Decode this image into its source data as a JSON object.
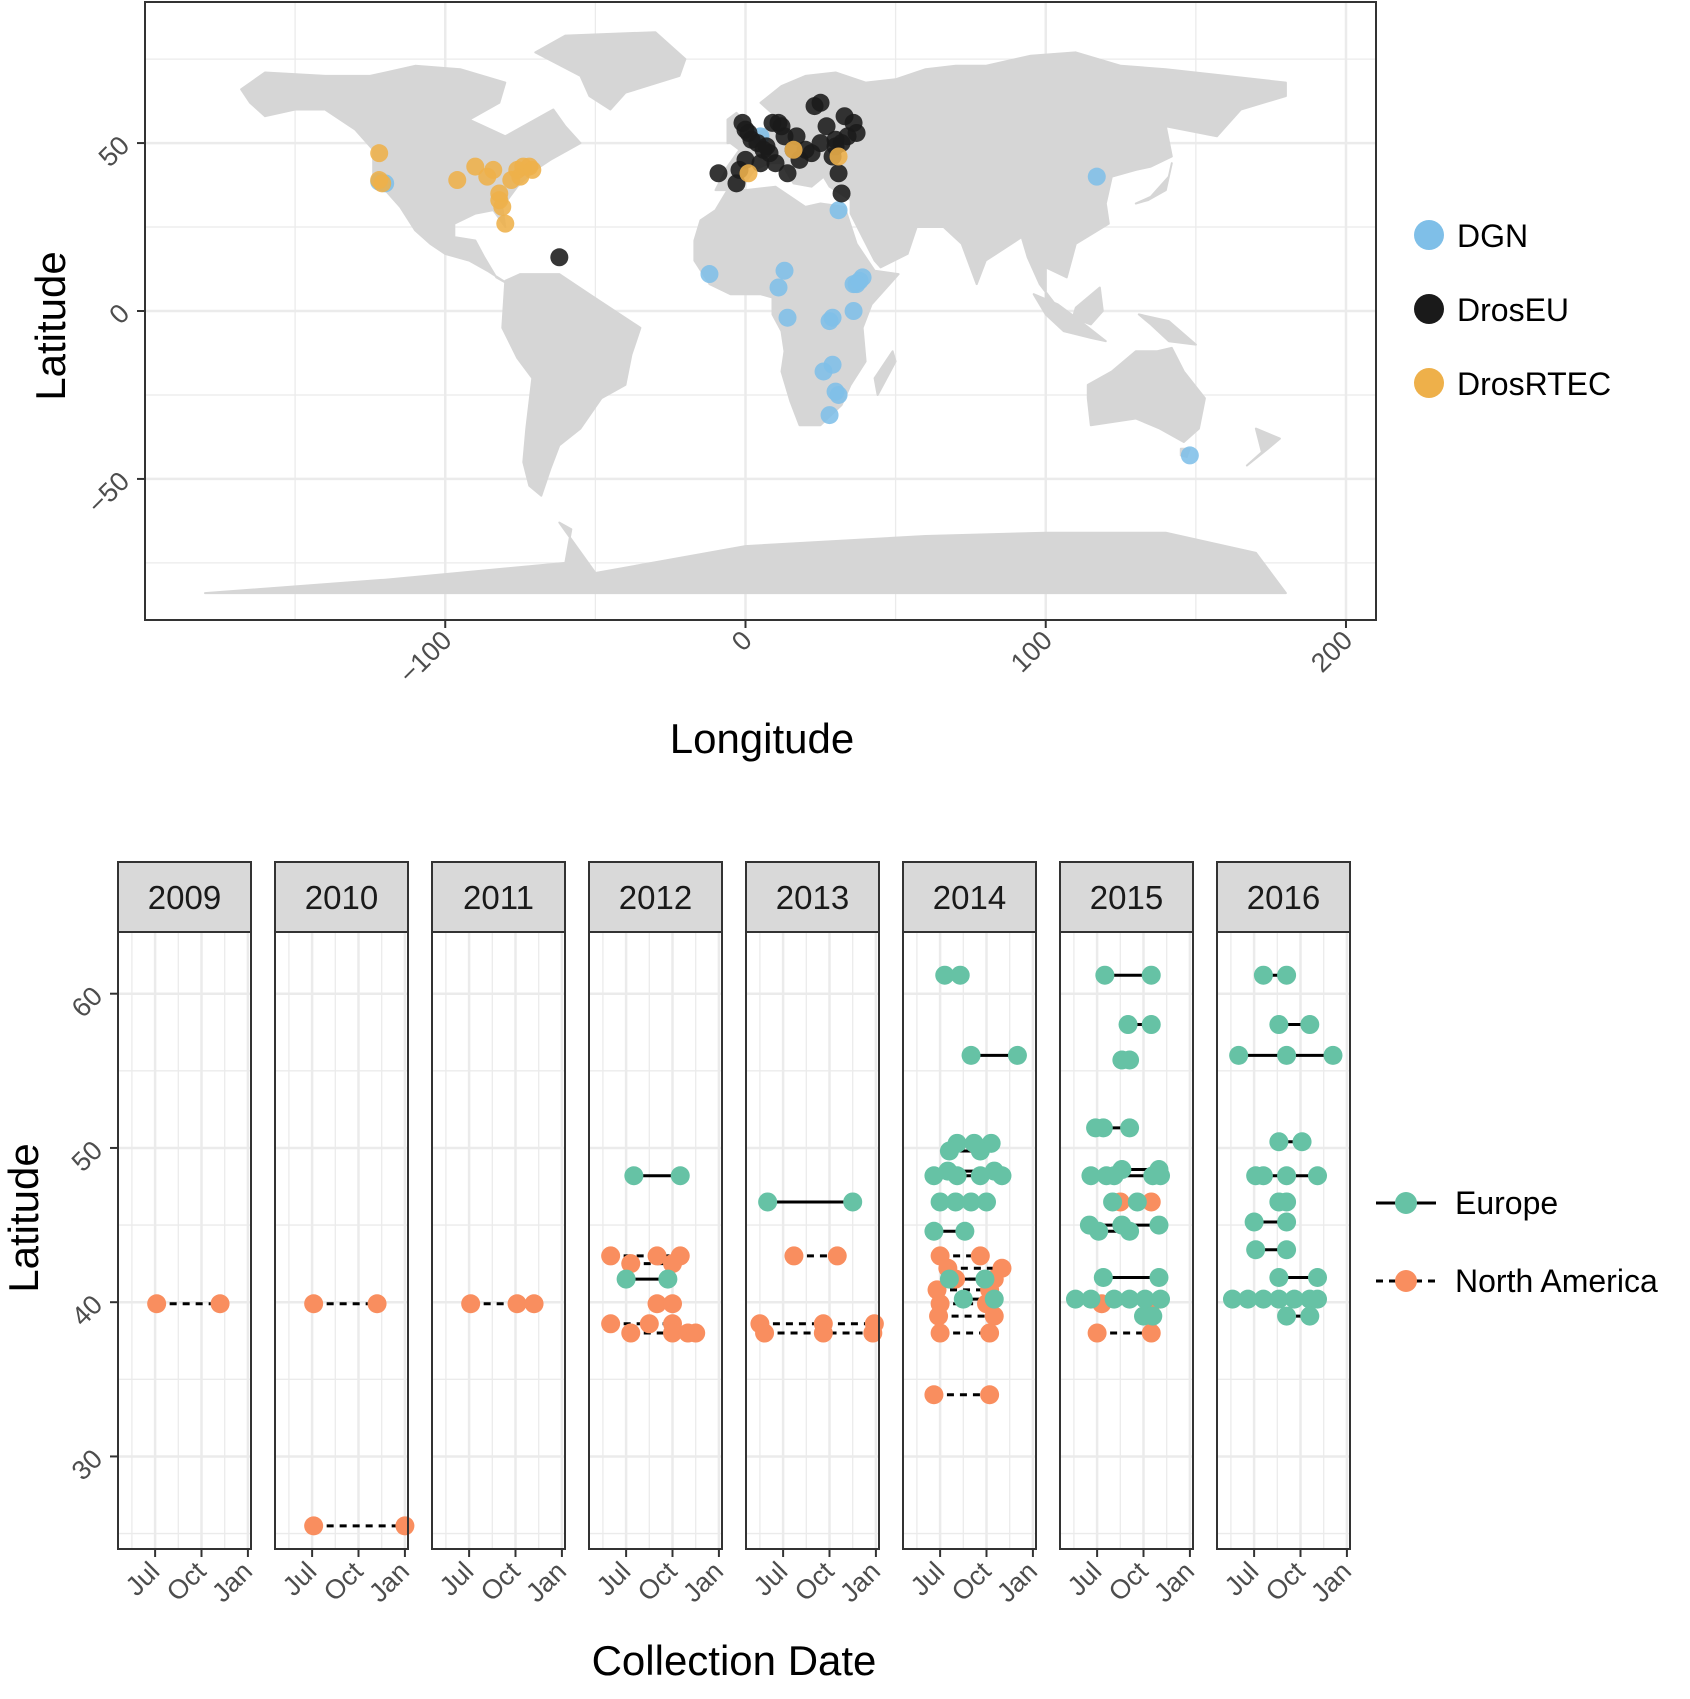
{
  "chart_data": [
    {
      "type": "scatter",
      "xlabel": "Longitude",
      "ylabel": "Latitude",
      "xlim": [
        -200,
        210
      ],
      "ylim": [
        -92,
        92
      ],
      "x_ticks": [
        -100,
        0,
        100,
        200
      ],
      "y_ticks": [
        -50,
        0,
        50
      ],
      "grid": true,
      "legend_position": "right",
      "background_map": "world",
      "legend": [
        {
          "name": "DGN",
          "color": "#7fbfe8"
        },
        {
          "name": "DrosEU",
          "color": "#1a1a1a"
        },
        {
          "name": "DrosRTEC",
          "color": "#eeb04a"
        }
      ],
      "series": [
        {
          "name": "DGN",
          "color": "#7fbfe8",
          "points": [
            [
              -122,
              38.5
            ],
            [
              -120,
              38
            ],
            [
              5,
              52
            ],
            [
              31,
              30
            ],
            [
              117,
              40
            ],
            [
              -12,
              11
            ],
            [
              13,
              12
            ],
            [
              11,
              7
            ],
            [
              14,
              -2
            ],
            [
              28,
              -3
            ],
            [
              29,
              -2
            ],
            [
              36,
              8
            ],
            [
              38,
              9
            ],
            [
              39,
              10
            ],
            [
              37,
              8
            ],
            [
              36,
              0
            ],
            [
              26,
              -18
            ],
            [
              29,
              -16
            ],
            [
              31,
              -25
            ],
            [
              30,
              -24
            ],
            [
              28,
              -31
            ],
            [
              148,
              -43
            ]
          ]
        },
        {
          "name": "DrosEU",
          "color": "#1a1a1a",
          "points": [
            [
              -1,
              56
            ],
            [
              0,
              54
            ],
            [
              1,
              53
            ],
            [
              2,
              51
            ],
            [
              4,
              50
            ],
            [
              7,
              49
            ],
            [
              8,
              47
            ],
            [
              6,
              48
            ],
            [
              9,
              56
            ],
            [
              11,
              56
            ],
            [
              12,
              55
            ],
            [
              13,
              52
            ],
            [
              16,
              48
            ],
            [
              17,
              52
            ],
            [
              20,
              48
            ],
            [
              22,
              47
            ],
            [
              23,
              61
            ],
            [
              25,
              62
            ],
            [
              25,
              50
            ],
            [
              27,
              55
            ],
            [
              29,
              46
            ],
            [
              30,
              51
            ],
            [
              30,
              49
            ],
            [
              32,
              50
            ],
            [
              33,
              58
            ],
            [
              34,
              52
            ],
            [
              36,
              56
            ],
            [
              37,
              53
            ],
            [
              31,
              41
            ],
            [
              32,
              35
            ],
            [
              -9,
              41
            ],
            [
              -3,
              38
            ],
            [
              -2,
              42
            ],
            [
              0,
              45
            ],
            [
              5,
              44
            ],
            [
              10,
              44
            ],
            [
              14,
              41
            ],
            [
              18,
              45
            ],
            [
              -62,
              16
            ]
          ]
        },
        {
          "name": "DrosRTEC",
          "color": "#eeb04a",
          "points": [
            [
              -122,
              47
            ],
            [
              -121,
              38
            ],
            [
              -122,
              39
            ],
            [
              -96,
              39
            ],
            [
              -90,
              43
            ],
            [
              -86,
              40
            ],
            [
              -84,
              42
            ],
            [
              -82,
              35
            ],
            [
              -81,
              31
            ],
            [
              -80,
              26
            ],
            [
              -78,
              39
            ],
            [
              -76,
              42
            ],
            [
              -75,
              40
            ],
            [
              -74,
              43
            ],
            [
              -72,
              43
            ],
            [
              -71,
              42
            ],
            [
              -82,
              33
            ],
            [
              1,
              41
            ],
            [
              16,
              48
            ],
            [
              31,
              46
            ]
          ]
        }
      ]
    },
    {
      "type": "line",
      "title": "",
      "xlabel": "Collection Date",
      "ylabel": "Latitude",
      "facets": [
        "2009",
        "2010",
        "2011",
        "2012",
        "2013",
        "2014",
        "2015",
        "2016"
      ],
      "x_ticks": [
        "Jul",
        "Oct",
        "Jan"
      ],
      "y_ticks": [
        30,
        40,
        50,
        60
      ],
      "ylim": [
        24,
        64
      ],
      "xlim_months": [
        4.6,
        13.2
      ],
      "grid": true,
      "legend_position": "right",
      "legend": [
        {
          "name": "Europe",
          "color": "#66c2a5",
          "line": "solid"
        },
        {
          "name": "North America",
          "color": "#f98e5f",
          "line": "dashed"
        }
      ],
      "series": [
        {
          "name": "North America",
          "color": "#f98e5f",
          "line": "dashed",
          "pairs": [
            {
              "year": "2009",
              "lat": 39.9,
              "dates": [
                7.1,
                11.2
              ]
            },
            {
              "year": "2010",
              "lat": 39.9,
              "dates": [
                7.1,
                11.2
              ]
            },
            {
              "year": "2010",
              "lat": 25.5,
              "dates": [
                7.1,
                13.0
              ]
            },
            {
              "year": "2011",
              "lat": 39.9,
              "dates": [
                7.1,
                10.1,
                11.2
              ]
            },
            {
              "year": "2012",
              "lat": 43.0,
              "dates": [
                6.0,
                9.0,
                10.5
              ]
            },
            {
              "year": "2012",
              "lat": 42.5,
              "dates": [
                7.3,
                10.0
              ]
            },
            {
              "year": "2012",
              "lat": 39.9,
              "dates": [
                9.0,
                10.0
              ]
            },
            {
              "year": "2012",
              "lat": 38.6,
              "dates": [
                6.0,
                8.5,
                10.0
              ]
            },
            {
              "year": "2012",
              "lat": 38.0,
              "dates": [
                7.3,
                10.0,
                11.0,
                11.5
              ]
            },
            {
              "year": "2013",
              "lat": 43.0,
              "dates": [
                7.7,
                10.5
              ]
            },
            {
              "year": "2013",
              "lat": 38.6,
              "dates": [
                5.5,
                9.6,
                12.9
              ]
            },
            {
              "year": "2013",
              "lat": 38.0,
              "dates": [
                5.8,
                9.6,
                12.8
              ]
            },
            {
              "year": "2014",
              "lat": 43.0,
              "dates": [
                7.0,
                9.6
              ]
            },
            {
              "year": "2014",
              "lat": 42.2,
              "dates": [
                7.5,
                11.0
              ]
            },
            {
              "year": "2014",
              "lat": 41.5,
              "dates": [
                8.0,
                10.5
              ]
            },
            {
              "year": "2014",
              "lat": 40.8,
              "dates": [
                6.8,
                10.2
              ]
            },
            {
              "year": "2014",
              "lat": 39.9,
              "dates": [
                7.0,
                10.0
              ]
            },
            {
              "year": "2014",
              "lat": 39.1,
              "dates": [
                6.9,
                10.5
              ]
            },
            {
              "year": "2014",
              "lat": 38.0,
              "dates": [
                7.0,
                10.2
              ]
            },
            {
              "year": "2014",
              "lat": 34.0,
              "dates": [
                6.6,
                10.2
              ]
            },
            {
              "year": "2015",
              "lat": 46.5,
              "dates": [
                8.5,
                10.5
              ]
            },
            {
              "year": "2015",
              "lat": 39.9,
              "dates": [
                7.3,
                10.5
              ]
            },
            {
              "year": "2015",
              "lat": 38.0,
              "dates": [
                7.0,
                10.5
              ]
            }
          ]
        },
        {
          "name": "Europe",
          "color": "#66c2a5",
          "line": "solid",
          "pairs": [
            {
              "year": "2012",
              "lat": 48.2,
              "dates": [
                7.5,
                10.5
              ]
            },
            {
              "year": "2012",
              "lat": 41.5,
              "dates": [
                7.0,
                9.7
              ]
            },
            {
              "year": "2013",
              "lat": 46.5,
              "dates": [
                6.0,
                11.5
              ]
            },
            {
              "year": "2014",
              "lat": 61.2,
              "dates": [
                7.3,
                8.3
              ]
            },
            {
              "year": "2014",
              "lat": 56.0,
              "dates": [
                9.0,
                12.0
              ]
            },
            {
              "year": "2014",
              "lat": 50.3,
              "dates": [
                8.1,
                9.2,
                10.3
              ]
            },
            {
              "year": "2014",
              "lat": 49.8,
              "dates": [
                7.6,
                9.6
              ]
            },
            {
              "year": "2014",
              "lat": 48.5,
              "dates": [
                7.5,
                10.5
              ]
            },
            {
              "year": "2014",
              "lat": 48.2,
              "dates": [
                6.6,
                8.1,
                9.6,
                11.0
              ]
            },
            {
              "year": "2014",
              "lat": 46.5,
              "dates": [
                7.0,
                8.0,
                9.0,
                10.0
              ]
            },
            {
              "year": "2014",
              "lat": 44.6,
              "dates": [
                6.6,
                8.6
              ]
            },
            {
              "year": "2014",
              "lat": 41.5,
              "dates": [
                7.6,
                9.9
              ]
            },
            {
              "year": "2014",
              "lat": 40.2,
              "dates": [
                8.5,
                10.5
              ]
            },
            {
              "year": "2015",
              "lat": 61.2,
              "dates": [
                7.5,
                10.5
              ]
            },
            {
              "year": "2015",
              "lat": 58.0,
              "dates": [
                9.0,
                10.5
              ]
            },
            {
              "year": "2015",
              "lat": 55.7,
              "dates": [
                8.6,
                9.1
              ]
            },
            {
              "year": "2015",
              "lat": 51.3,
              "dates": [
                6.9,
                7.4,
                9.1
              ]
            },
            {
              "year": "2015",
              "lat": 48.6,
              "dates": [
                8.6,
                11.0
              ]
            },
            {
              "year": "2015",
              "lat": 48.2,
              "dates": [
                6.6,
                7.6,
                8.1,
                10.6,
                11.1
              ]
            },
            {
              "year": "2015",
              "lat": 46.5,
              "dates": [
                8.0,
                9.6
              ]
            },
            {
              "year": "2015",
              "lat": 45.0,
              "dates": [
                6.5,
                8.6,
                11.0
              ]
            },
            {
              "year": "2015",
              "lat": 44.6,
              "dates": [
                7.1,
                9.1
              ]
            },
            {
              "year": "2015",
              "lat": 41.6,
              "dates": [
                7.4,
                11.0
              ]
            },
            {
              "year": "2015",
              "lat": 40.2,
              "dates": [
                5.6,
                6.6,
                8.1,
                9.1,
                10.1,
                11.1
              ]
            },
            {
              "year": "2015",
              "lat": 39.1,
              "dates": [
                10.0,
                10.6
              ]
            },
            {
              "year": "2016",
              "lat": 61.2,
              "dates": [
                7.6,
                9.1
              ]
            },
            {
              "year": "2016",
              "lat": 58.0,
              "dates": [
                8.6,
                10.6
              ]
            },
            {
              "year": "2016",
              "lat": 56.0,
              "dates": [
                6.0,
                9.1,
                12.1
              ]
            },
            {
              "year": "2016",
              "lat": 50.4,
              "dates": [
                8.6,
                10.1
              ]
            },
            {
              "year": "2016",
              "lat": 48.2,
              "dates": [
                7.1,
                7.6,
                9.1,
                11.1
              ]
            },
            {
              "year": "2016",
              "lat": 46.5,
              "dates": [
                8.6,
                9.1
              ]
            },
            {
              "year": "2016",
              "lat": 45.2,
              "dates": [
                7.0,
                9.1
              ]
            },
            {
              "year": "2016",
              "lat": 43.4,
              "dates": [
                7.1,
                9.1
              ]
            },
            {
              "year": "2016",
              "lat": 41.6,
              "dates": [
                8.6,
                11.1
              ]
            },
            {
              "year": "2016",
              "lat": 40.2,
              "dates": [
                5.6,
                6.6,
                7.6,
                8.6,
                9.6,
                10.6,
                11.1
              ]
            },
            {
              "year": "2016",
              "lat": 39.1,
              "dates": [
                9.1,
                10.6
              ]
            }
          ]
        }
      ]
    }
  ]
}
